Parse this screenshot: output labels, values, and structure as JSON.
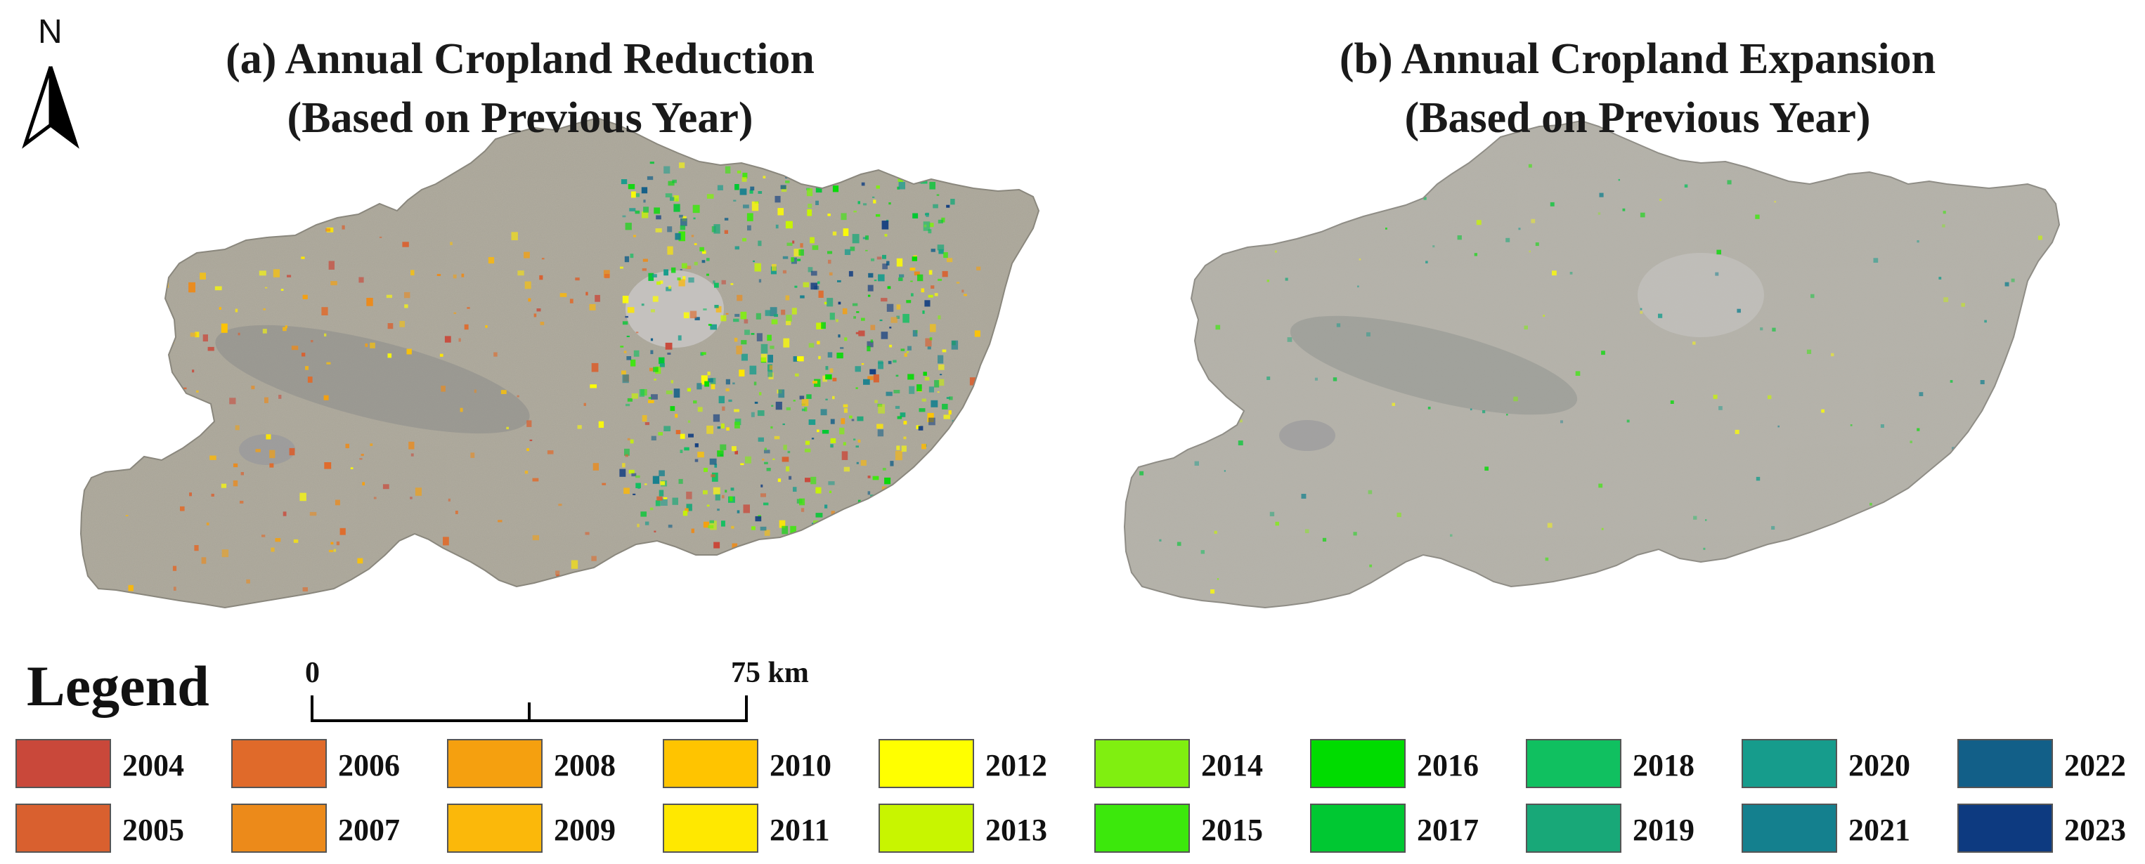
{
  "north_arrow": {
    "label": "N"
  },
  "panels": [
    {
      "id": "a",
      "title_line1": "(a) Annual Cropland Reduction",
      "title_line2": "(Based on Previous Year)"
    },
    {
      "id": "b",
      "title_line1": "(b) Annual Cropland Expansion",
      "title_line2": "(Based on Previous Year)"
    }
  ],
  "legend": {
    "title": "Legend",
    "items": [
      {
        "year": "2004",
        "color": "#c9483a"
      },
      {
        "year": "2005",
        "color": "#d9602f"
      },
      {
        "year": "2006",
        "color": "#e06a2a"
      },
      {
        "year": "2007",
        "color": "#ec8a1a"
      },
      {
        "year": "2008",
        "color": "#f5a00f"
      },
      {
        "year": "2009",
        "color": "#fbb80a"
      },
      {
        "year": "2010",
        "color": "#ffc400"
      },
      {
        "year": "2011",
        "color": "#ffe800"
      },
      {
        "year": "2012",
        "color": "#ffff00"
      },
      {
        "year": "2013",
        "color": "#c8f500"
      },
      {
        "year": "2014",
        "color": "#80ef10"
      },
      {
        "year": "2015",
        "color": "#3ce80c"
      },
      {
        "year": "2016",
        "color": "#00dc00"
      },
      {
        "year": "2017",
        "color": "#00c832"
      },
      {
        "year": "2018",
        "color": "#10c060"
      },
      {
        "year": "2019",
        "color": "#18a878"
      },
      {
        "year": "2020",
        "color": "#169c8c"
      },
      {
        "year": "2021",
        "color": "#14808e"
      },
      {
        "year": "2022",
        "color": "#125f88"
      },
      {
        "year": "2023",
        "color": "#0d3a80"
      }
    ]
  },
  "scale_bar": {
    "start_label": "0",
    "end_label": "75 km"
  },
  "colors": {
    "map_base_a": "#a8a497",
    "map_base_b": "#b2b0a8",
    "background": "#ffffff"
  }
}
